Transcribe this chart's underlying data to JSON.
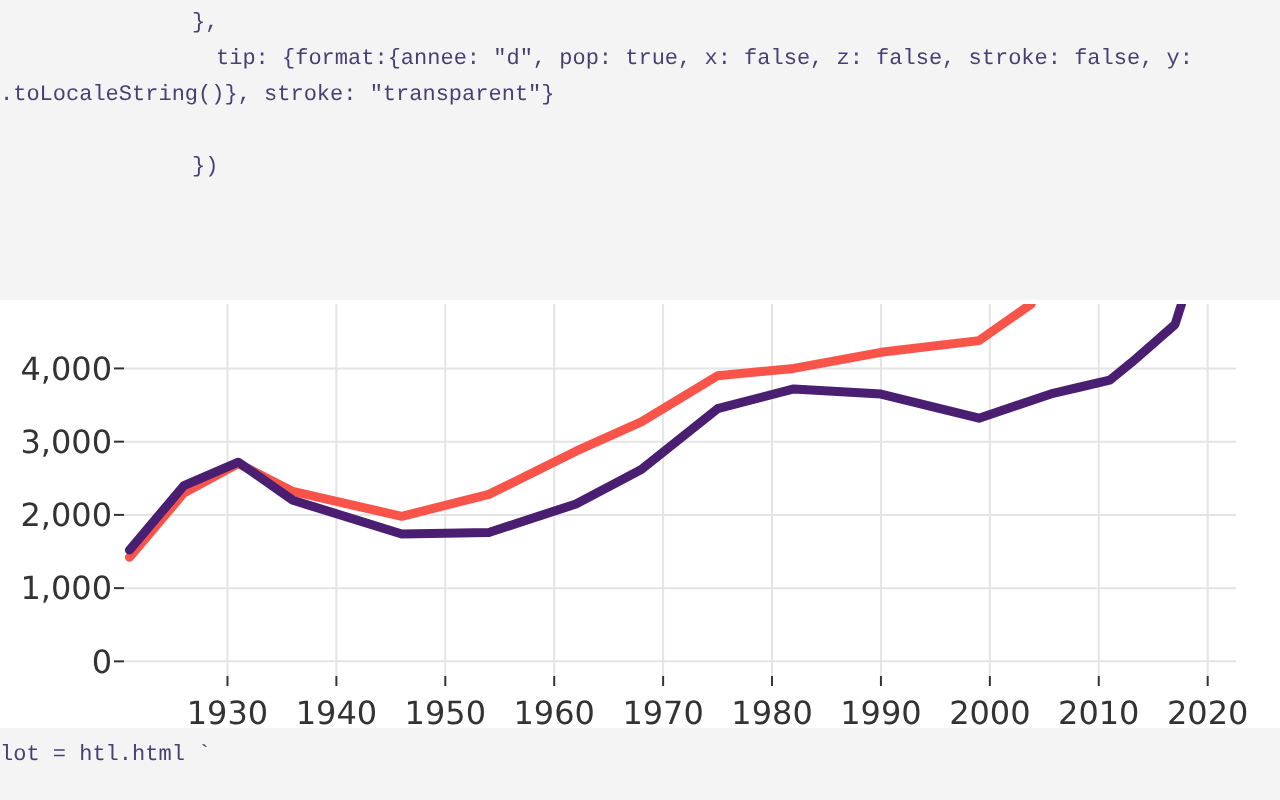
{
  "chart_data": {
    "type": "line",
    "x": [
      1921,
      1926,
      1931,
      1936,
      1946,
      1954,
      1962,
      1968,
      1975,
      1982,
      1990,
      1999,
      2003.8
    ],
    "series": [
      {
        "color": "#f9544a",
        "values": [
          1420,
          2300,
          2700,
          2320,
          1980,
          2280,
          2870,
          3270,
          3900,
          4000,
          4220,
          4380,
          4880
        ]
      },
      {
        "color": "#4a1e70",
        "x": [
          1921,
          1926,
          1931,
          1936,
          1946,
          1954,
          1962,
          1968,
          1975,
          1982,
          1990,
          1999,
          2005.8,
          2008.4,
          2011,
          2013,
          2015,
          2017,
          2017.6
        ],
        "values": [
          1520,
          2400,
          2720,
          2200,
          1740,
          1760,
          2150,
          2620,
          3450,
          3720,
          3650,
          3320,
          3660,
          3750,
          3840,
          4080,
          4340,
          4600,
          4880
        ]
      }
    ],
    "xlim": [
      1920.5,
      2022.6
    ],
    "ylim": [
      -200,
      4880
    ],
    "xticks": [
      1930,
      1940,
      1950,
      1960,
      1970,
      1980,
      1990,
      2000,
      2010,
      2020
    ],
    "yticks": [
      0,
      {
        "value": 1000,
        "label": "1,000"
      },
      {
        "value": 2000,
        "label": "2,000"
      },
      {
        "value": 3000,
        "label": "3,000"
      },
      {
        "value": 4000,
        "label": "4,000"
      }
    ],
    "grid": true,
    "line_style": "solid",
    "marker": "none",
    "annotations": [
      "},",
      "tip: {format:{annee: \"d\", pop: true, x: false, z: false, stroke: false, y:",
      ".toLocaleString()}, stroke: \"transparent\"}",
      "})",
      "lot = htl.html `"
    ]
  }
}
